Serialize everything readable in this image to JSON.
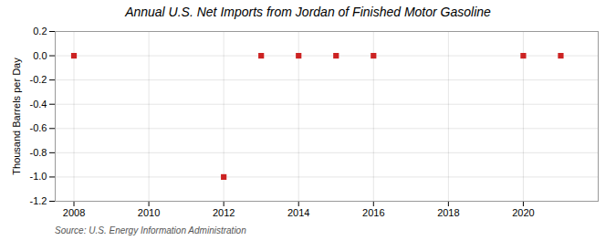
{
  "chart_data": {
    "type": "scatter",
    "title": "Annual U.S. Net Imports from Jordan of Finished Motor Gasoline",
    "ylabel": "Thousand Barrels per Day",
    "caption": "Source: U.S. Energy Information Administration",
    "x": [
      2008,
      2012,
      2013,
      2014,
      2015,
      2016,
      2020,
      2021
    ],
    "values": [
      0,
      -1,
      0,
      0,
      0,
      0,
      0,
      0
    ],
    "color": "#cc2222",
    "marker": "square",
    "xlim": [
      2007.5,
      2022.0
    ],
    "xticks": [
      2008,
      2010,
      2012,
      2014,
      2016,
      2018,
      2020
    ],
    "ylim": [
      -1.2,
      0.2
    ],
    "yticks": [
      -1.2,
      {
        "value": -1.0,
        "label": "-1.0"
      },
      -0.8,
      -0.6,
      -0.4,
      -0.2,
      {
        "value": 0.0,
        "label": "0.0"
      },
      0.2
    ],
    "grid": true
  }
}
